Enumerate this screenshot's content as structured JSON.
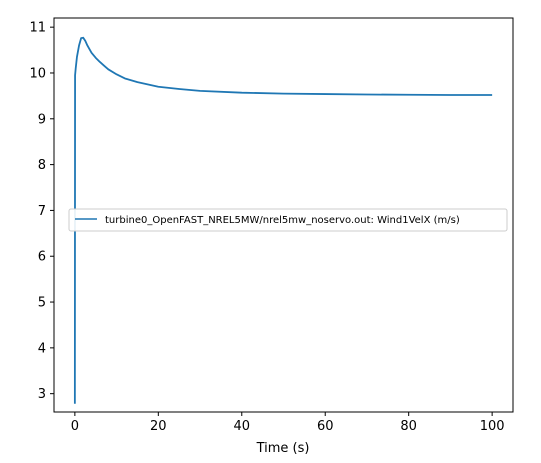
{
  "chart_data": {
    "type": "line",
    "title": "",
    "xlabel": "Time (s)",
    "ylabel": "",
    "xlim": [
      -5,
      105
    ],
    "ylim": [
      2.6,
      11.2
    ],
    "xticks": [
      0,
      20,
      40,
      60,
      80,
      100
    ],
    "yticks": [
      3,
      4,
      5,
      6,
      7,
      8,
      9,
      10,
      11
    ],
    "grid": false,
    "legend_position": "center-left",
    "series": [
      {
        "name": "turbine0_OpenFAST_NREL5MW/nrel5mw_noservo.out: Wind1VelX (m/s)",
        "color": "#1f77b4",
        "x": [
          0,
          0.05,
          0.2,
          0.5,
          1.0,
          1.5,
          2.0,
          2.5,
          3.0,
          4.0,
          5.0,
          6.0,
          7.0,
          8.0,
          10.0,
          12.0,
          15.0,
          20.0,
          25.0,
          30.0,
          40.0,
          50.0,
          60.0,
          70.0,
          80.0,
          90.0,
          100.0
        ],
        "y": [
          2.78,
          9.95,
          10.1,
          10.35,
          10.6,
          10.76,
          10.77,
          10.7,
          10.6,
          10.44,
          10.33,
          10.24,
          10.16,
          10.08,
          9.97,
          9.88,
          9.8,
          9.7,
          9.65,
          9.61,
          9.57,
          9.55,
          9.54,
          9.53,
          9.525,
          9.52,
          9.52
        ]
      }
    ]
  }
}
